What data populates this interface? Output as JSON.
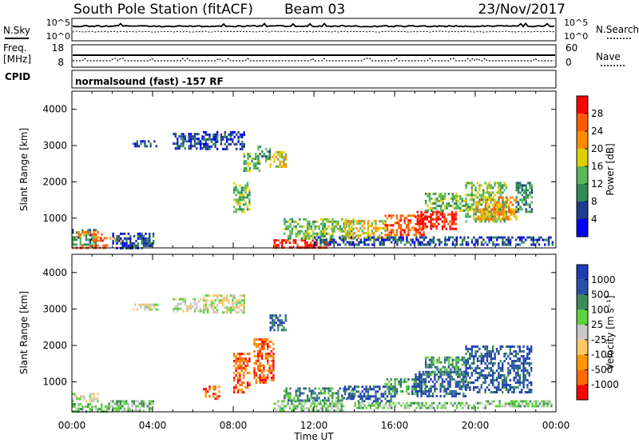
{
  "header": {
    "station": "South Pole Station (fitACF)",
    "beam": "Beam 03",
    "date": "23/Nov/2017"
  },
  "status": {
    "nsky_label": "N.Sky",
    "nsearch_label": "N.Search",
    "nsky_ticks": [
      "10^5",
      "10^0"
    ],
    "freq_label_1": "Freq.",
    "freq_label_2": "[MHz]",
    "freq_ticks": [
      "18",
      "8"
    ],
    "nave_label": "Nave",
    "nave_ticks": [
      "60",
      "0"
    ],
    "cpid_label": "CPID",
    "cpid_text": "normalsound (fast) -157 RF"
  },
  "colors": {
    "power": [
      "#0000ff",
      "#1e3c8c",
      "#2e8b57",
      "#5ab85a",
      "#e0d000",
      "#ff8c00",
      "#ff5a00",
      "#ff0000"
    ],
    "velocity": [
      "#ff0000",
      "#ff6a00",
      "#ff9600",
      "#ffc864",
      "#c8c8c8",
      "#5fd23c",
      "#3c8c5a",
      "#2850aa",
      "#1e3cb4"
    ]
  },
  "chart_data": [
    {
      "type": "heatmap",
      "name": "power",
      "xlabel": "Time UT",
      "ylabel": "Slant Range [km]",
      "xlim": [
        0,
        24
      ],
      "ylim": [
        180,
        4500
      ],
      "y_ticks": [
        "1000",
        "2000",
        "3000",
        "4000"
      ],
      "y_tick_values": [
        1000,
        2000,
        3000,
        4000
      ],
      "colorbar_label": "Power [dB]",
      "colorbar_ticks": [
        "4",
        "8",
        "12",
        "16",
        "20",
        "24",
        "28"
      ],
      "colorbar_range": [
        0,
        32
      ],
      "regions": [
        {
          "t0": 0.0,
          "t1": 1.8,
          "r0": 200,
          "r1": 280,
          "level": 6
        },
        {
          "t0": 0.0,
          "t1": 1.2,
          "r0": 300,
          "r1": 700,
          "level": 2
        },
        {
          "t0": 0.2,
          "t1": 1.5,
          "r0": 500,
          "r1": 650,
          "level": 5
        },
        {
          "t0": 1.0,
          "t1": 2.5,
          "r0": 350,
          "r1": 480,
          "level": 6
        },
        {
          "t0": 2.0,
          "t1": 4.0,
          "r0": 200,
          "r1": 600,
          "level": 1
        },
        {
          "t0": 3.0,
          "t1": 4.3,
          "r0": 3000,
          "r1": 3150,
          "level": 1
        },
        {
          "t0": 5.0,
          "t1": 6.5,
          "r0": 2950,
          "r1": 3350,
          "level": 1
        },
        {
          "t0": 6.5,
          "t1": 8.5,
          "r0": 2900,
          "r1": 3400,
          "level": 1
        },
        {
          "t0": 8.0,
          "t1": 8.8,
          "r0": 1200,
          "r1": 2000,
          "level": 3
        },
        {
          "t0": 8.5,
          "t1": 9.3,
          "r0": 2300,
          "r1": 2800,
          "level": 3
        },
        {
          "t0": 9.2,
          "t1": 9.8,
          "r0": 2600,
          "r1": 3000,
          "level": 2
        },
        {
          "t0": 9.8,
          "t1": 10.6,
          "r0": 2400,
          "r1": 2850,
          "level": 4
        },
        {
          "t0": 10.0,
          "t1": 12.8,
          "r0": 220,
          "r1": 420,
          "level": 7
        },
        {
          "t0": 10.5,
          "t1": 14.0,
          "r0": 450,
          "r1": 1000,
          "level": 3
        },
        {
          "t0": 13.5,
          "t1": 15.5,
          "r0": 450,
          "r1": 950,
          "level": 4
        },
        {
          "t0": 15.5,
          "t1": 17.5,
          "r0": 550,
          "r1": 1100,
          "level": 6
        },
        {
          "t0": 17.0,
          "t1": 19.0,
          "r0": 700,
          "r1": 1200,
          "level": 7
        },
        {
          "t0": 17.5,
          "t1": 19.5,
          "r0": 1200,
          "r1": 1700,
          "level": 3
        },
        {
          "t0": 19.5,
          "t1": 21.5,
          "r0": 900,
          "r1": 2000,
          "level": 3
        },
        {
          "t0": 20.0,
          "t1": 22.0,
          "r0": 1000,
          "r1": 1600,
          "level": 5
        },
        {
          "t0": 22.0,
          "t1": 22.8,
          "r0": 1200,
          "r1": 2000,
          "level": 2
        },
        {
          "t0": 12.0,
          "t1": 23.8,
          "r0": 300,
          "r1": 500,
          "level": 1
        }
      ]
    },
    {
      "type": "heatmap",
      "name": "velocity",
      "xlabel": "Time UT",
      "ylabel": "Slant Range [km]",
      "xlim": [
        0,
        24
      ],
      "ylim": [
        180,
        4500
      ],
      "y_ticks": [
        "1000",
        "2000",
        "3000",
        "4000"
      ],
      "y_tick_values": [
        1000,
        2000,
        3000,
        4000
      ],
      "x_ticks": [
        "00:00",
        "04:00",
        "08:00",
        "12:00",
        "16:00",
        "20:00",
        "00:00"
      ],
      "x_tick_values": [
        0,
        4,
        8,
        12,
        16,
        20,
        24
      ],
      "colorbar_label": "Velocity [m s⁻¹]",
      "colorbar_ticks": [
        "1000",
        "500",
        "100",
        "25",
        "-25",
        "-100",
        "-500",
        "-1000"
      ],
      "regions": [
        {
          "t0": 0.0,
          "t1": 1.3,
          "r0": 450,
          "r1": 700,
          "level": 4
        },
        {
          "t0": 0.0,
          "t1": 1.8,
          "r0": 200,
          "r1": 420,
          "level": 5
        },
        {
          "t0": 1.8,
          "t1": 4.0,
          "r0": 200,
          "r1": 500,
          "level": 5
        },
        {
          "t0": 3.0,
          "t1": 4.3,
          "r0": 3000,
          "r1": 3150,
          "level": 4
        },
        {
          "t0": 5.0,
          "t1": 6.5,
          "r0": 2950,
          "r1": 3300,
          "level": 4
        },
        {
          "t0": 6.5,
          "t1": 8.5,
          "r0": 2900,
          "r1": 3400,
          "level": 4
        },
        {
          "t0": 6.5,
          "t1": 7.3,
          "r0": 550,
          "r1": 900,
          "level": 1
        },
        {
          "t0": 8.0,
          "t1": 8.8,
          "r0": 700,
          "r1": 1800,
          "level": 1
        },
        {
          "t0": 9.0,
          "t1": 10.0,
          "r0": 1000,
          "r1": 2200,
          "level": 1
        },
        {
          "t0": 9.8,
          "t1": 10.6,
          "r0": 2400,
          "r1": 2850,
          "level": 7
        },
        {
          "t0": 10.0,
          "t1": 13.5,
          "r0": 200,
          "r1": 500,
          "level": 5
        },
        {
          "t0": 10.5,
          "t1": 14.0,
          "r0": 500,
          "r1": 850,
          "level": 6
        },
        {
          "t0": 13.5,
          "t1": 16.0,
          "r0": 500,
          "r1": 900,
          "level": 7
        },
        {
          "t0": 15.5,
          "t1": 17.5,
          "r0": 700,
          "r1": 1100,
          "level": 6
        },
        {
          "t0": 17.0,
          "t1": 19.5,
          "r0": 600,
          "r1": 1300,
          "level": 7
        },
        {
          "t0": 17.5,
          "t1": 19.5,
          "r0": 1200,
          "r1": 1700,
          "level": 6
        },
        {
          "t0": 19.5,
          "t1": 22.8,
          "r0": 700,
          "r1": 2000,
          "level": 7
        },
        {
          "t0": 20.5,
          "t1": 23.8,
          "r0": 350,
          "r1": 500,
          "level": 5
        },
        {
          "t0": 14.0,
          "t1": 20.5,
          "r0": 300,
          "r1": 450,
          "level": 5
        }
      ]
    }
  ]
}
